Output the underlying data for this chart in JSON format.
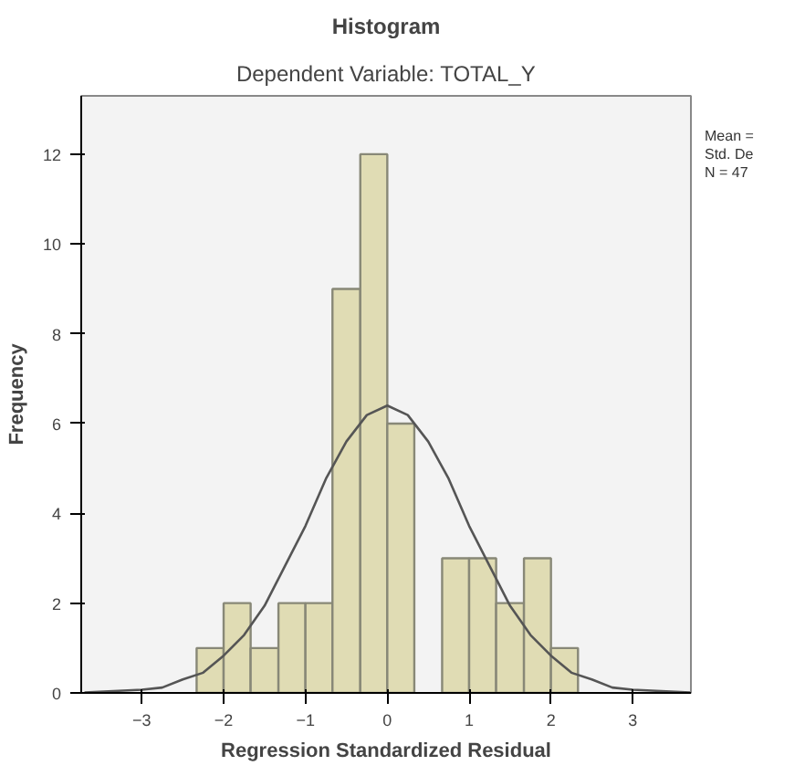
{
  "chart_data": {
    "type": "histogram",
    "title": "Histogram",
    "subtitle": "Dependent Variable: TOTAL_Y",
    "xlabel": "Regression Standardized Residual",
    "ylabel": "Frequency",
    "bins": [
      -2.33,
      -2,
      -1.67,
      -1.33,
      -1,
      -0.67,
      -0.33,
      0,
      0.33,
      0.67,
      1,
      1.33,
      1.67,
      2,
      2.33
    ],
    "values": [
      1,
      2,
      1,
      2,
      2,
      9,
      12,
      6,
      0,
      3,
      3,
      2,
      3,
      1
    ],
    "color": "#e0dcb4",
    "series": [
      {
        "type": "line",
        "color": "#555555",
        "x": [
          -3.7,
          -3,
          -2.75,
          -2.5,
          -2.25,
          -2,
          -1.75,
          -1.5,
          -1.25,
          -1,
          -0.75,
          -0.5,
          -0.25,
          0,
          0.25,
          0.5,
          0.75,
          1,
          1.25,
          1.5,
          1.75,
          2,
          2.25,
          2.5,
          2.75,
          3,
          3.7
        ],
        "values": [
          0.01,
          0.07,
          0.12,
          0.3,
          0.45,
          0.83,
          1.29,
          1.94,
          2.83,
          3.72,
          4.77,
          5.6,
          6.19,
          6.4,
          6.19,
          5.6,
          4.77,
          3.72,
          2.83,
          1.94,
          1.29,
          0.83,
          0.45,
          0.3,
          0.12,
          0.07,
          0.01
        ]
      }
    ],
    "xlim": [
      -3.74,
      3.71
    ],
    "ylim": [
      0,
      13.3
    ],
    "xticks": [
      -3,
      -2,
      -1,
      0,
      1,
      2,
      3
    ],
    "yticks": [
      0,
      2,
      4,
      6,
      8,
      10,
      12
    ],
    "grid": false,
    "annotations": [
      "Mean =",
      "Std. De",
      "N = 47"
    ]
  }
}
